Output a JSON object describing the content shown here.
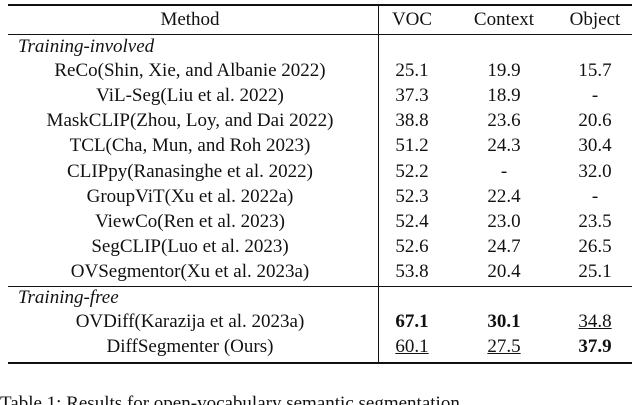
{
  "table": {
    "header": [
      "Method",
      "VOC",
      "Context",
      "Object"
    ],
    "groups": [
      {
        "title": "Training-involved",
        "rows": [
          [
            "ReCo(Shin, Xie, and Albanie 2022)",
            "25.1",
            "19.9",
            "15.7"
          ],
          [
            "ViL-Seg(Liu et al. 2022)",
            "37.3",
            "18.9",
            "-"
          ],
          [
            "MaskCLIP(Zhou, Loy, and Dai 2022)",
            "38.8",
            "23.6",
            "20.6"
          ],
          [
            "TCL(Cha, Mun, and Roh 2023)",
            "51.2",
            "24.3",
            "30.4"
          ],
          [
            "CLIPpy(Ranasinghe et al. 2022)",
            "52.2",
            "-",
            "32.0"
          ],
          [
            "GroupViT(Xu et al. 2022a)",
            "52.3",
            "22.4",
            "-"
          ],
          [
            "ViewCo(Ren et al. 2023)",
            "52.4",
            "23.0",
            "23.5"
          ],
          [
            "SegCLIP(Luo et al. 2023)",
            "52.6",
            "24.7",
            "26.5"
          ],
          [
            "OVSegmentor(Xu et al. 2023a)",
            "53.8",
            "20.4",
            "25.1"
          ]
        ]
      },
      {
        "title": "Training-free",
        "rows": [
          [
            "OVDiff(Karazija et al. 2023a)",
            "67.1",
            "30.1",
            "34.8"
          ],
          [
            "DiffSegmenter (Ours)",
            "60.1",
            "27.5",
            "37.9"
          ]
        ]
      }
    ]
  },
  "caption": "Table 1: Results for open-vocabulary semantic segmentation"
}
